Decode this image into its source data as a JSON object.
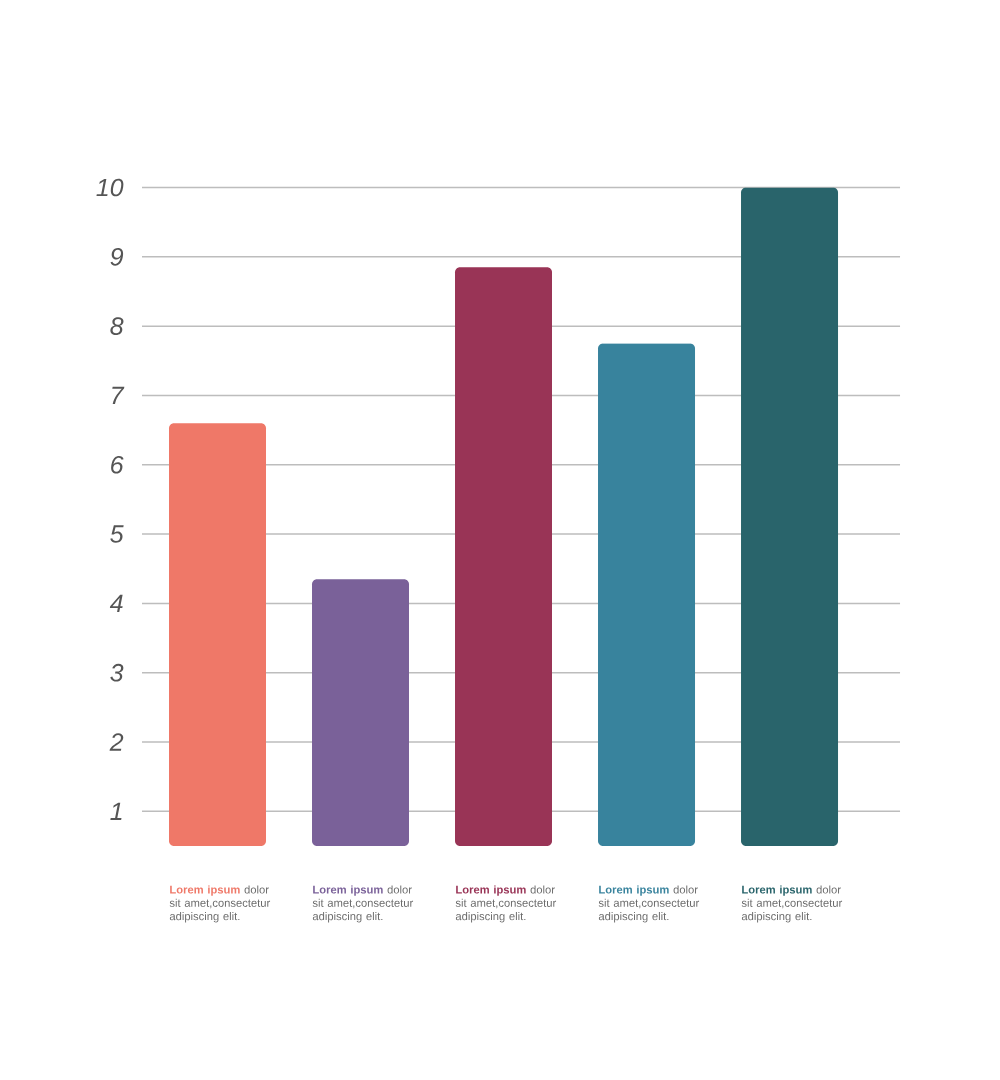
{
  "chart_data": {
    "type": "bar",
    "categories": [
      "**Lorem ipsum** dolor sit amet,consectetur adipiscing elit.",
      "**Lorem ipsum** dolor sit amet,consectetur adipiscing elit.",
      "**Lorem ipsum** dolor sit amet,consectetur adipiscing elit.",
      "**Lorem ipsum** dolor sit amet,consectetur adipiscing elit.",
      "**Lorem ipsum** dolor sit amet,consectetur adipiscing elit."
    ],
    "values": [
      6.6,
      4.35,
      8.85,
      7.75,
      10
    ],
    "colors": [
      "#ef7868",
      "#7a6199",
      "#993456",
      "#38839d",
      "#29646b"
    ],
    "ylim": [
      0.5,
      10
    ],
    "yticks": [
      1,
      2,
      3,
      4,
      5,
      6,
      7,
      8,
      9,
      10
    ],
    "grid": "y"
  }
}
